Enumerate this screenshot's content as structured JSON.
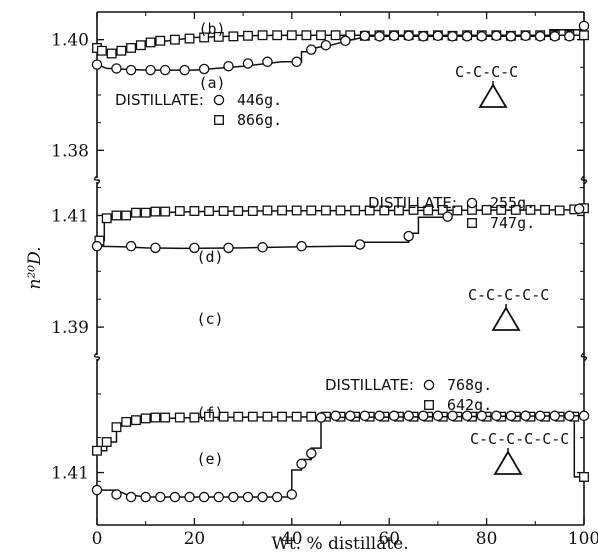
{
  "chart_data": {
    "type": "line",
    "xlabel": "Wt. % distillate.",
    "ylabel": "n²⁰D.",
    "x_ticks": [
      0,
      20,
      40,
      60,
      80,
      100
    ],
    "xlim": [
      0,
      100
    ],
    "panels": [
      {
        "y_ticks": [
          1.38,
          1.4
        ],
        "ylim": [
          1.375,
          1.405
        ],
        "structure": "C-C-C-C",
        "legend": {
          "title": "DISTILLATE:",
          "entries": [
            {
              "marker": "circle",
              "label": "446g."
            },
            {
              "marker": "square",
              "label": "866g."
            }
          ]
        },
        "series": [
          {
            "name": "(b)",
            "marker": "square",
            "x": [
              0,
              1,
              3,
              5,
              7,
              9,
              11,
              13,
              16,
              19,
              22,
              25,
              28,
              31,
              34,
              37,
              40,
              43,
              46,
              49,
              52,
              55,
              58,
              61,
              64,
              67,
              70,
              73,
              76,
              79,
              82,
              85,
              88,
              91,
              94,
              97,
              100
            ],
            "y": [
              1.3985,
              1.398,
              1.3975,
              1.398,
              1.3985,
              1.399,
              1.3995,
              1.3998,
              1.4,
              1.4002,
              1.4004,
              1.4005,
              1.4006,
              1.4007,
              1.4008,
              1.4008,
              1.4008,
              1.4008,
              1.4008,
              1.4008,
              1.4008,
              1.4007,
              1.4008,
              1.4008,
              1.4008,
              1.4007,
              1.4008,
              1.4007,
              1.4008,
              1.4008,
              1.4008,
              1.4007,
              1.4008,
              1.4008,
              1.4008,
              1.4008,
              1.4008
            ],
            "path_x": [
              0,
              1.5,
              1.5,
              4,
              4,
              7,
              12,
              20,
              30,
              40,
              100
            ],
            "path_y": [
              1.3985,
              1.3985,
              1.3975,
              1.3975,
              1.398,
              1.3985,
              1.3995,
              1.4004,
              1.4007,
              1.4008,
              1.4008
            ]
          },
          {
            "name": "(a)",
            "marker": "circle",
            "x": [
              0,
              4,
              7,
              11,
              14,
              18,
              22,
              27,
              31,
              35,
              41,
              44,
              47,
              51,
              55,
              58,
              61,
              64,
              67,
              70,
              73,
              76,
              79,
              82,
              85,
              88,
              91,
              94,
              97,
              100
            ],
            "y": [
              1.3955,
              1.3948,
              1.3945,
              1.3945,
              1.3945,
              1.3945,
              1.3947,
              1.3952,
              1.3957,
              1.396,
              1.396,
              1.3982,
              1.399,
              1.3998,
              1.4007,
              1.4006,
              1.4007,
              1.4007,
              1.4006,
              1.4007,
              1.4006,
              1.4006,
              1.4006,
              1.4007,
              1.4006,
              1.4007,
              1.4006,
              1.4006,
              1.4006,
              1.4025
            ],
            "path_x": [
              0,
              2,
              10,
              20,
              30,
              38,
              42,
              42,
              44,
              44,
              46,
              48,
              51,
              54,
              56,
              60,
              93,
              93,
              100
            ],
            "path_y": [
              1.3955,
              1.3948,
              1.3945,
              1.3945,
              1.3952,
              1.396,
              1.396,
              1.3978,
              1.3978,
              1.3984,
              1.3987,
              1.399,
              1.3997,
              1.4003,
              1.4006,
              1.4006,
              1.4006,
              1.4018,
              1.4018
            ]
          }
        ]
      },
      {
        "y_ticks": [
          1.39,
          1.41
        ],
        "ylim": [
          1.385,
          1.416
        ],
        "structure": "C-C-C-C-C",
        "legend": {
          "title": "DISTILLATE:",
          "entries": [
            {
              "marker": "circle",
              "label": "255g."
            },
            {
              "marker": "square",
              "label": "747g."
            }
          ]
        },
        "series": [
          {
            "name": "(d)",
            "marker": "square",
            "x": [
              0.5,
              2,
              4,
              6,
              8,
              10,
              12,
              14,
              17,
              20,
              23,
              26,
              29,
              32,
              35,
              38,
              41,
              44,
              47,
              50,
              53,
              56,
              59,
              62,
              65,
              68,
              71,
              74,
              77,
              80,
              83,
              86,
              89,
              92,
              95,
              98,
              100
            ],
            "y": [
              1.4055,
              1.4095,
              1.41,
              1.41,
              1.4105,
              1.4105,
              1.4107,
              1.4107,
              1.4108,
              1.4108,
              1.4108,
              1.4108,
              1.4108,
              1.4108,
              1.4109,
              1.4109,
              1.4109,
              1.4109,
              1.4109,
              1.4109,
              1.4109,
              1.4109,
              1.4109,
              1.4109,
              1.411,
              1.4109,
              1.411,
              1.4109,
              1.411,
              1.411,
              1.411,
              1.411,
              1.411,
              1.411,
              1.4109,
              1.4111,
              1.4113
            ],
            "path_x": [
              0,
              1,
              1.5,
              1.5,
              3,
              6,
              12,
              20,
              30,
              100
            ],
            "path_y": [
              1.4055,
              1.4055,
              1.4055,
              1.4095,
              1.4098,
              1.4101,
              1.4105,
              1.4107,
              1.4108,
              1.411
            ]
          },
          {
            "name": "(c)",
            "marker": "circle",
            "x": [
              0,
              7,
              12,
              20,
              27,
              34,
              42,
              54,
              64,
              72,
              99
            ],
            "y": [
              1.4045,
              1.4045,
              1.4042,
              1.4042,
              1.4042,
              1.4043,
              1.4045,
              1.4048,
              1.4063,
              1.4098,
              1.4112
            ],
            "path_x": [
              0,
              5,
              10,
              18,
              30,
              42,
              50,
              54,
              54,
              64,
              64,
              66,
              66,
              72
            ],
            "path_y": [
              1.4045,
              1.4044,
              1.4042,
              1.4041,
              1.4042,
              1.4044,
              1.4045,
              1.4045,
              1.4052,
              1.4052,
              1.4068,
              1.4068,
              1.4097,
              1.4097
            ]
          }
        ]
      },
      {
        "y_ticks": [
          1.41
        ],
        "ylim": [
          1.404,
          1.423
        ],
        "structure": "C-C-C-C-C-C",
        "legend": {
          "title": "DISTILLATE:",
          "entries": [
            {
              "marker": "circle",
              "label": "768g."
            },
            {
              "marker": "square",
              "label": "642g."
            }
          ]
        },
        "series": [
          {
            "name": "(f)",
            "marker": "square",
            "x": [
              0,
              2,
              4,
              6,
              8,
              10,
              12,
              14,
              17,
              20,
              23,
              26,
              29,
              32,
              35,
              38,
              41,
              44,
              47,
              50,
              53,
              56,
              59,
              62,
              65,
              68,
              71,
              74,
              77,
              80,
              83,
              86,
              89,
              92,
              95,
              98,
              100
            ],
            "y": [
              1.4125,
              1.4135,
              1.4152,
              1.4158,
              1.416,
              1.4162,
              1.4163,
              1.4163,
              1.4163,
              1.4163,
              1.4164,
              1.4164,
              1.4164,
              1.4164,
              1.4164,
              1.4164,
              1.4164,
              1.4164,
              1.4164,
              1.4164,
              1.4164,
              1.4164,
              1.4164,
              1.4164,
              1.4164,
              1.4164,
              1.4164,
              1.4164,
              1.4164,
              1.4164,
              1.4164,
              1.4164,
              1.4164,
              1.4164,
              1.4164,
              1.4164,
              1.4095
            ],
            "path_x": [
              0,
              2,
              2,
              4,
              4,
              6,
              10,
              20,
              50,
              98,
              98,
              100
            ],
            "path_y": [
              1.4125,
              1.4125,
              1.4135,
              1.4135,
              1.415,
              1.4157,
              1.4161,
              1.4163,
              1.4164,
              1.4164,
              1.4095,
              1.4095
            ]
          },
          {
            "name": "(e)",
            "marker": "circle",
            "x": [
              0,
              4,
              7,
              10,
              13,
              16,
              19,
              22,
              25,
              28,
              31,
              34,
              37,
              40,
              42,
              44,
              46,
              49,
              52,
              55,
              58,
              61,
              64,
              67,
              70,
              73,
              76,
              79,
              82,
              85,
              88,
              91,
              94,
              97,
              100
            ],
            "y": [
              1.408,
              1.4075,
              1.4072,
              1.4072,
              1.4072,
              1.4072,
              1.4072,
              1.4072,
              1.4072,
              1.4072,
              1.4072,
              1.4072,
              1.4072,
              1.4075,
              1.411,
              1.4122,
              1.4163,
              1.4165,
              1.4165,
              1.4165,
              1.4165,
              1.4165,
              1.4165,
              1.4165,
              1.4165,
              1.4165,
              1.4165,
              1.4165,
              1.4165,
              1.4165,
              1.4165,
              1.4165,
              1.4165,
              1.4165,
              1.4165
            ],
            "path_x": [
              0,
              4,
              6,
              10,
              20,
              30,
              38,
              40,
              40,
              42,
              42,
              44,
              44,
              46,
              46,
              100
            ],
            "path_y": [
              1.408,
              1.408,
              1.4075,
              1.4072,
              1.4072,
              1.4072,
              1.4072,
              1.4072,
              1.4103,
              1.4103,
              1.4115,
              1.4115,
              1.4128,
              1.4128,
              1.4163,
              1.4165
            ]
          }
        ]
      }
    ]
  }
}
